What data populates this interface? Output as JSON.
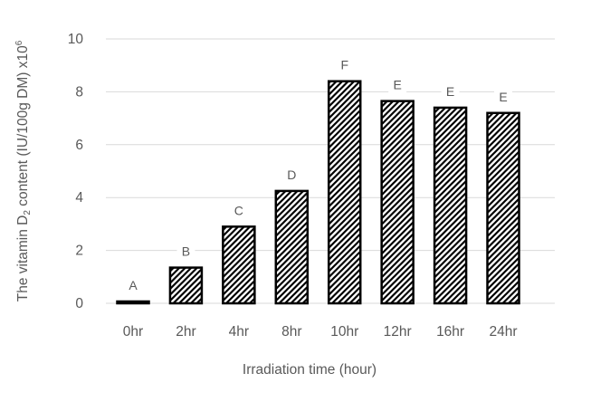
{
  "chart_data": {
    "type": "bar",
    "title": "",
    "categories": [
      "0hr",
      "2hr",
      "4hr",
      "8hr",
      "10hr",
      "12hr",
      "16hr",
      "24hr"
    ],
    "values": [
      0.07,
      1.35,
      2.9,
      4.25,
      8.4,
      7.65,
      7.4,
      7.2
    ],
    "bar_letters": [
      "A",
      "B",
      "C",
      "D",
      "F",
      "E",
      "E",
      "E"
    ],
    "xlabel": "Irradiation time (hour)",
    "ylabel": "The vitamin D₂ content (IU/100g DM) x10⁶",
    "ylabel_parts": [
      {
        "text": "The vitamin D",
        "script": "normal"
      },
      {
        "text": "2",
        "script": "sub"
      },
      {
        "text": " content (IU/100g DM) x10",
        "script": "normal"
      },
      {
        "text": "6",
        "script": "sup"
      }
    ],
    "ylim": [
      0,
      10
    ],
    "yticks": [
      0,
      2,
      4,
      6,
      8,
      10
    ],
    "grid": "horizontal",
    "legend": "none",
    "bar_style": {
      "fill": "diagonal-hatch",
      "hatch_direction": "forward-slash",
      "hatch_color": "#000000",
      "bar_background": "#ffffff",
      "border_color": "#000000"
    },
    "colors": {
      "background": "#ffffff",
      "gridline": "#d9d9d9",
      "axis_line": "#d9d9d9",
      "text": "#595959"
    }
  }
}
